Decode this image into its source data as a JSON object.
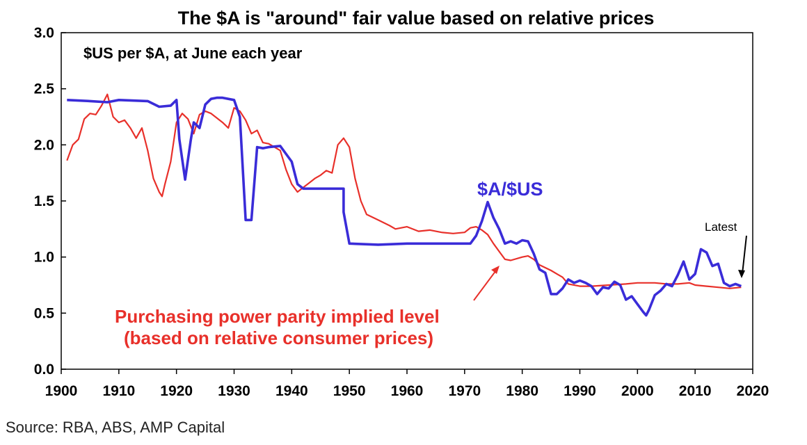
{
  "colors": {
    "aud_usd": "#3a2cd8",
    "ppp": "#e8302a",
    "axis": "#000000"
  },
  "chart_data": {
    "type": "line",
    "title": "The $A is \"around\" fair value based on relative prices",
    "subtitle": "$US per $A, at June each year",
    "xlabel": "",
    "ylabel": "",
    "xlim": [
      1900,
      2020
    ],
    "ylim": [
      0,
      3.0
    ],
    "x_ticks": [
      1900,
      1910,
      1920,
      1930,
      1940,
      1950,
      1960,
      1970,
      1980,
      1990,
      2000,
      2010,
      2020
    ],
    "y_ticks": [
      "0.0",
      "0.5",
      "1.0",
      "1.5",
      "2.0",
      "2.5",
      "3.0"
    ],
    "grid": false,
    "series": [
      {
        "name": "$A/$US",
        "color": "#3a2cd8",
        "points": [
          [
            1901,
            2.4
          ],
          [
            1905,
            2.39
          ],
          [
            1908,
            2.38
          ],
          [
            1910,
            2.4
          ],
          [
            1915,
            2.39
          ],
          [
            1917,
            2.34
          ],
          [
            1919,
            2.35
          ],
          [
            1920,
            2.4
          ],
          [
            1920.5,
            2.05
          ],
          [
            1921.5,
            1.69
          ],
          [
            1922.5,
            2.05
          ],
          [
            1923,
            2.2
          ],
          [
            1924,
            2.15
          ],
          [
            1925,
            2.36
          ],
          [
            1926,
            2.41
          ],
          [
            1927,
            2.42
          ],
          [
            1928,
            2.42
          ],
          [
            1930,
            2.4
          ],
          [
            1931,
            2.25
          ],
          [
            1932,
            1.33
          ],
          [
            1933,
            1.33
          ],
          [
            1934,
            1.98
          ],
          [
            1935,
            1.97
          ],
          [
            1936,
            1.98
          ],
          [
            1938,
            1.99
          ],
          [
            1940,
            1.85
          ],
          [
            1941,
            1.65
          ],
          [
            1942,
            1.61
          ],
          [
            1949,
            1.61
          ],
          [
            1949,
            1.4
          ],
          [
            1950,
            1.12
          ],
          [
            1955,
            1.11
          ],
          [
            1960,
            1.12
          ],
          [
            1965,
            1.12
          ],
          [
            1970,
            1.12
          ],
          [
            1971,
            1.12
          ],
          [
            1972,
            1.19
          ],
          [
            1973,
            1.32
          ],
          [
            1974,
            1.49
          ],
          [
            1975,
            1.35
          ],
          [
            1976,
            1.25
          ],
          [
            1977,
            1.12
          ],
          [
            1978,
            1.14
          ],
          [
            1979,
            1.12
          ],
          [
            1980,
            1.15
          ],
          [
            1981,
            1.14
          ],
          [
            1982,
            1.03
          ],
          [
            1983,
            0.89
          ],
          [
            1984,
            0.86
          ],
          [
            1985,
            0.67
          ],
          [
            1986,
            0.67
          ],
          [
            1987,
            0.72
          ],
          [
            1988,
            0.8
          ],
          [
            1989,
            0.77
          ],
          [
            1990,
            0.79
          ],
          [
            1991,
            0.77
          ],
          [
            1992,
            0.74
          ],
          [
            1993,
            0.67
          ],
          [
            1994,
            0.73
          ],
          [
            1995,
            0.72
          ],
          [
            1996,
            0.78
          ],
          [
            1997,
            0.75
          ],
          [
            1998,
            0.62
          ],
          [
            1999,
            0.65
          ],
          [
            2000,
            0.58
          ],
          [
            2001,
            0.51
          ],
          [
            2001.5,
            0.48
          ],
          [
            2002,
            0.53
          ],
          [
            2003,
            0.66
          ],
          [
            2004,
            0.7
          ],
          [
            2005,
            0.76
          ],
          [
            2006,
            0.74
          ],
          [
            2007,
            0.84
          ],
          [
            2008,
            0.96
          ],
          [
            2009,
            0.8
          ],
          [
            2010,
            0.85
          ],
          [
            2011,
            1.07
          ],
          [
            2012,
            1.04
          ],
          [
            2013,
            0.92
          ],
          [
            2014,
            0.94
          ],
          [
            2015,
            0.77
          ],
          [
            2016,
            0.74
          ],
          [
            2017,
            0.76
          ],
          [
            2018,
            0.74
          ]
        ]
      },
      {
        "name": "Purchasing power parity implied level",
        "color": "#e8302a",
        "points": [
          [
            1901,
            1.86
          ],
          [
            1902,
            2.0
          ],
          [
            1903,
            2.05
          ],
          [
            1904,
            2.23
          ],
          [
            1905,
            2.28
          ],
          [
            1906,
            2.27
          ],
          [
            1907,
            2.35
          ],
          [
            1908,
            2.45
          ],
          [
            1909,
            2.25
          ],
          [
            1910,
            2.2
          ],
          [
            1911,
            2.22
          ],
          [
            1912,
            2.15
          ],
          [
            1913,
            2.06
          ],
          [
            1914,
            2.15
          ],
          [
            1915,
            1.95
          ],
          [
            1916,
            1.7
          ],
          [
            1917,
            1.58
          ],
          [
            1917.5,
            1.54
          ],
          [
            1918,
            1.65
          ],
          [
            1919,
            1.85
          ],
          [
            1920,
            2.2
          ],
          [
            1921,
            2.28
          ],
          [
            1922,
            2.23
          ],
          [
            1923,
            2.1
          ],
          [
            1924,
            2.27
          ],
          [
            1925,
            2.3
          ],
          [
            1926,
            2.28
          ],
          [
            1927,
            2.24
          ],
          [
            1928,
            2.2
          ],
          [
            1929,
            2.15
          ],
          [
            1930,
            2.33
          ],
          [
            1931,
            2.3
          ],
          [
            1932,
            2.22
          ],
          [
            1933,
            2.1
          ],
          [
            1934,
            2.13
          ],
          [
            1935,
            2.02
          ],
          [
            1936,
            2.01
          ],
          [
            1937,
            1.98
          ],
          [
            1938,
            1.95
          ],
          [
            1939,
            1.78
          ],
          [
            1940,
            1.65
          ],
          [
            1941,
            1.58
          ],
          [
            1942,
            1.62
          ],
          [
            1943,
            1.66
          ],
          [
            1944,
            1.7
          ],
          [
            1945,
            1.73
          ],
          [
            1946,
            1.77
          ],
          [
            1947,
            1.75
          ],
          [
            1948,
            2.0
          ],
          [
            1949,
            2.06
          ],
          [
            1950,
            1.98
          ],
          [
            1951,
            1.7
          ],
          [
            1952,
            1.5
          ],
          [
            1953,
            1.38
          ],
          [
            1955,
            1.33
          ],
          [
            1957,
            1.28
          ],
          [
            1958,
            1.25
          ],
          [
            1960,
            1.27
          ],
          [
            1962,
            1.23
          ],
          [
            1964,
            1.24
          ],
          [
            1966,
            1.22
          ],
          [
            1968,
            1.21
          ],
          [
            1970,
            1.22
          ],
          [
            1971,
            1.26
          ],
          [
            1972,
            1.27
          ],
          [
            1973,
            1.24
          ],
          [
            1974,
            1.2
          ],
          [
            1975,
            1.12
          ],
          [
            1976,
            1.05
          ],
          [
            1977,
            0.98
          ],
          [
            1978,
            0.97
          ],
          [
            1980,
            1.0
          ],
          [
            1981,
            1.01
          ],
          [
            1982,
            0.98
          ],
          [
            1983,
            0.93
          ],
          [
            1985,
            0.88
          ],
          [
            1986,
            0.85
          ],
          [
            1987,
            0.82
          ],
          [
            1988,
            0.76
          ],
          [
            1990,
            0.74
          ],
          [
            1992,
            0.74
          ],
          [
            1995,
            0.75
          ],
          [
            1998,
            0.76
          ],
          [
            2000,
            0.77
          ],
          [
            2003,
            0.77
          ],
          [
            2005,
            0.76
          ],
          [
            2007,
            0.76
          ],
          [
            2009,
            0.77
          ],
          [
            2010,
            0.75
          ],
          [
            2012,
            0.74
          ],
          [
            2014,
            0.73
          ],
          [
            2016,
            0.72
          ],
          [
            2018,
            0.73
          ]
        ]
      }
    ],
    "annotations": {
      "aud_label": "$A/$US",
      "ppp_label_line1": "Purchasing power parity implied level",
      "ppp_label_line2": "(based on relative consumer prices)",
      "latest_label": "Latest"
    }
  },
  "source": "Source: RBA, ABS, AMP Capital"
}
